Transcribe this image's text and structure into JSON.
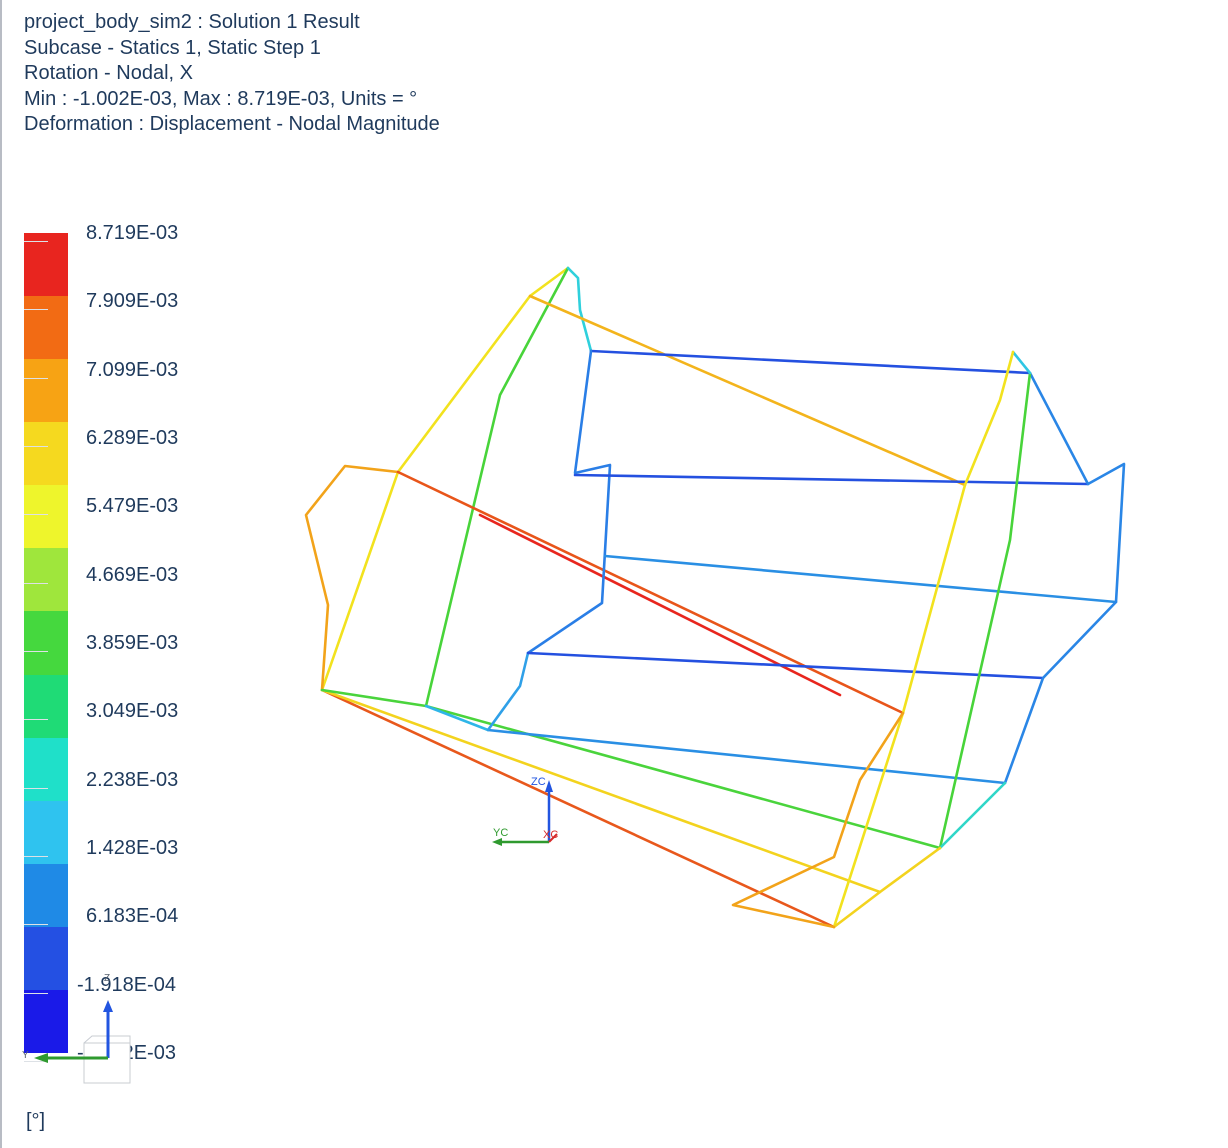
{
  "header": {
    "line1": "project_body_sim2 : Solution 1 Result",
    "line2": "Subcase - Statics 1, Static Step 1",
    "line3": "Rotation - Nodal, X",
    "line4": "Min : -1.002E-03, Max : 8.719E-03, Units = °",
    "line5": "Deformation : Displacement - Nodal Magnitude"
  },
  "legend": {
    "labels": [
      "8.719E-03",
      "7.909E-03",
      "7.099E-03",
      "6.289E-03",
      "5.479E-03",
      "4.669E-03",
      "3.859E-03",
      "3.049E-03",
      "2.238E-03",
      "1.428E-03",
      "6.183E-04",
      "-1.918E-04",
      "-1.002E-03"
    ],
    "colors": [
      "#e8251f",
      "#f26b14",
      "#f7a314",
      "#f5d91f",
      "#eef52c",
      "#9fe63c",
      "#45d83e",
      "#1fdb76",
      "#1fe0c9",
      "#2fc3ef",
      "#1f8ae6",
      "#2450e3",
      "#1a1ae8"
    ],
    "units": "[°]"
  },
  "triad": {
    "zc": "ZC",
    "yc": "YC",
    "xc": "XC",
    "z": "Z",
    "y": "Y"
  },
  "colors": {
    "text": "#1f3a5c"
  }
}
